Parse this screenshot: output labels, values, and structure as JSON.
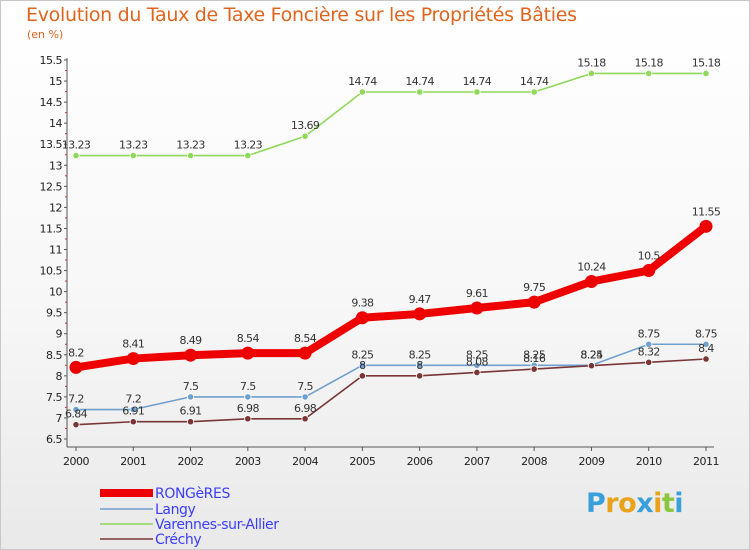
{
  "title": "Evolution du Taux de Taxe Foncière sur les Propriétés Bâties",
  "unit_label": "(en %)",
  "logo": {
    "letters": [
      "P",
      "r",
      "o",
      "x",
      "i",
      "t",
      "i"
    ],
    "colors": [
      "#3aa0dc",
      "#e8a21c",
      "#e8a21c",
      "#3aa0dc",
      "#e8a21c",
      "#8cc63f",
      "#3aa0dc"
    ]
  },
  "chart_data": {
    "type": "line",
    "title": "Evolution du Taux de Taxe Foncière sur les Propriétés Bâties",
    "ylabel": "(en %)",
    "xlabel": "",
    "x": [
      "2000",
      "2001",
      "2002",
      "2003",
      "2004",
      "2005",
      "2006",
      "2007",
      "2008",
      "2009",
      "2010",
      "2011"
    ],
    "ylim": [
      6.5,
      15.5
    ],
    "yticks": [
      "6.5",
      "7",
      "7.5",
      "8",
      "8.5",
      "9",
      "9.5",
      "10",
      "10.5",
      "11",
      "11.5",
      "12",
      "12.5",
      "13",
      "13.5",
      "14",
      "14.5",
      "15",
      "15.5"
    ],
    "grid": false,
    "legend_position": "bottom-left",
    "series": [
      {
        "name": "RONGèRES",
        "color": "#ee0000",
        "width": "thick",
        "values": [
          8.2,
          8.41,
          8.49,
          8.54,
          8.54,
          9.38,
          9.47,
          9.61,
          9.75,
          10.24,
          10.5,
          11.55
        ],
        "labels": [
          "8.2",
          "8.41",
          "8.49",
          "8.54",
          "8.54",
          "9.38",
          "9.47",
          "9.61",
          "9.75",
          "10.24",
          "10.5",
          "11.55"
        ]
      },
      {
        "name": "Langy",
        "color": "#6fa0d0",
        "width": "thin",
        "values": [
          7.2,
          7.2,
          7.5,
          7.5,
          7.5,
          8.25,
          8.25,
          8.25,
          8.25,
          8.25,
          8.75,
          8.75
        ],
        "labels": [
          "7.2",
          "7.2",
          "7.5",
          "7.5",
          "7.5",
          "8.25",
          "8.25",
          "8.25",
          "8.25",
          "8.25",
          "8.75",
          "8.75"
        ]
      },
      {
        "name": "Varennes-sur-Allier",
        "color": "#8fd85a",
        "width": "thin",
        "values": [
          13.23,
          13.23,
          13.23,
          13.23,
          13.69,
          14.74,
          14.74,
          14.74,
          14.74,
          15.18,
          15.18,
          15.18
        ],
        "labels": [
          "13.23",
          "13.23",
          "13.23",
          "13.23",
          "13.69",
          "14.74",
          "14.74",
          "14.74",
          "14.74",
          "15.18",
          "15.18",
          "15.18"
        ]
      },
      {
        "name": "Créchy",
        "color": "#7a3535",
        "width": "thin",
        "values": [
          6.84,
          6.91,
          6.91,
          6.98,
          6.98,
          8.0,
          8.0,
          8.08,
          8.16,
          8.24,
          8.32,
          8.4
        ],
        "labels": [
          "6.84",
          "6.91",
          "6.91",
          "6.98",
          "6.98",
          "8",
          "8",
          "8.08",
          "8.16",
          "8.24",
          "8.32",
          "8.4"
        ]
      }
    ]
  }
}
